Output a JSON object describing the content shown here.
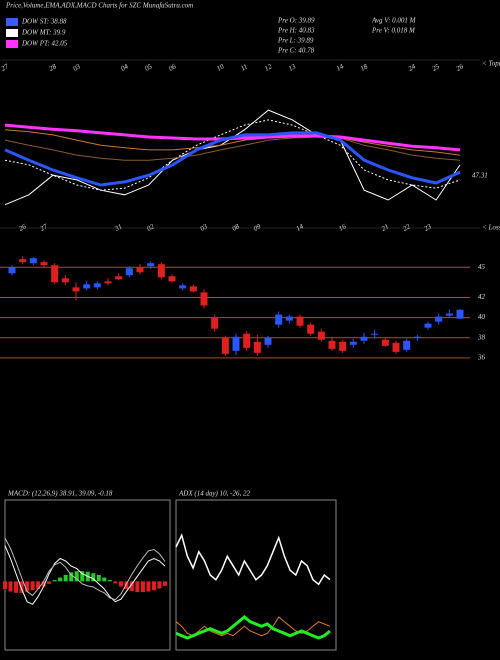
{
  "header": {
    "title": "Price,Volume,EMA,ADX,MACD Charts for SZC MunafaSutra.com",
    "legend": [
      {
        "label": "DOW ST: 38.88",
        "color": "#3a5cff"
      },
      {
        "label": "DOW MT: 39.9",
        "color": "#ffffff"
      },
      {
        "label": "DOW PT: 42.05",
        "color": "#ff33ff"
      }
    ],
    "info": [
      "Pre O: 39.89",
      "Pre H: 40.83",
      "Pre L: 39.89",
      "Pre C: 40.78",
      "Avg V: 0.001 M",
      "Pre V: 0.018 M"
    ]
  },
  "chart_data": [
    {
      "type": "line",
      "annotations": [
        "47.31",
        "< Topa"
      ],
      "categories": [
        "27",
        null,
        "28",
        "03",
        null,
        "04",
        "05",
        "06",
        null,
        "10",
        "11",
        "12",
        "13",
        null,
        "14",
        "18",
        null,
        "24",
        "25",
        "26"
      ],
      "ylim": [
        30,
        60
      ],
      "series": [
        {
          "color": "#ffffff",
          "width": 1,
          "values": [
            32.0,
            33.9,
            37.7,
            36.8,
            34.8,
            33.9,
            35.8,
            40.6,
            42.6,
            43.5,
            46.5,
            50.3,
            48.4,
            45.5,
            44.5,
            34.8,
            32.9,
            35.8,
            32.9,
            39.7
          ]
        },
        {
          "color": "#ffffff",
          "width": 1,
          "dash": true,
          "values": [
            40.6,
            39.7,
            37.7,
            35.8,
            34.8,
            35.2,
            37.2,
            40.6,
            43.5,
            45.5,
            47.4,
            48.4,
            47.4,
            45.5,
            43.5,
            38.7,
            36.8,
            35.8,
            35.2,
            36.8
          ]
        },
        {
          "color": "#c87533",
          "width": 1,
          "values": [
            46.5,
            46.1,
            45.5,
            44.5,
            43.5,
            43.0,
            42.6,
            42.6,
            43.0,
            43.5,
            44.5,
            44.9,
            45.1,
            45.1,
            44.9,
            44.1,
            43.3,
            42.6,
            42.2,
            41.6
          ]
        },
        {
          "color": "#8b5a2b",
          "width": 1,
          "values": [
            44.5,
            43.5,
            42.6,
            41.6,
            41.0,
            40.6,
            40.6,
            41.0,
            41.6,
            42.6,
            43.5,
            44.5,
            44.9,
            45.1,
            44.9,
            43.5,
            42.6,
            41.6,
            41.0,
            40.6
          ]
        },
        {
          "color": "#ff33ff",
          "width": 3,
          "values": [
            47.4,
            47.0,
            46.6,
            46.3,
            45.9,
            45.5,
            45.1,
            44.9,
            44.7,
            44.7,
            44.9,
            45.1,
            45.3,
            45.3,
            45.1,
            44.5,
            43.9,
            43.3,
            43.0,
            42.6
          ]
        },
        {
          "color": "#2a56ff",
          "width": 3,
          "values": [
            42.6,
            40.6,
            38.7,
            37.2,
            35.8,
            36.4,
            37.7,
            39.7,
            42.6,
            44.5,
            45.5,
            45.5,
            45.9,
            45.9,
            44.5,
            40.6,
            38.7,
            37.2,
            36.2,
            38.3
          ]
        }
      ]
    },
    {
      "type": "candlestick",
      "annotations": [
        "< Loss"
      ],
      "categories": [
        null,
        "26",
        null,
        "27",
        null,
        null,
        null,
        null,
        null,
        null,
        "31",
        null,
        null,
        "02",
        null,
        null,
        null,
        null,
        "03",
        null,
        null,
        "08",
        null,
        "09",
        null,
        null,
        null,
        "14",
        null,
        null,
        null,
        "16",
        null,
        null,
        null,
        "21",
        null,
        "22",
        null,
        "23",
        null,
        null,
        null
      ],
      "open": [
        44.4,
        45.8,
        45.4,
        45.5,
        45.2,
        43.9,
        43.0,
        42.9,
        43.0,
        43.6,
        44.1,
        44.2,
        45.0,
        45.1,
        45.3,
        44.1,
        42.9,
        43.1,
        42.5,
        40.0,
        38.0,
        36.7,
        38.4,
        37.6,
        37.3,
        39.3,
        39.7,
        40.1,
        39.3,
        38.6,
        37.7,
        37.6,
        37.3,
        37.7,
        38.3,
        37.8,
        37.5,
        36.8,
        38.0,
        39.0,
        39.6,
        40.2,
        39.89
      ],
      "high": [
        45.2,
        46.1,
        46.0,
        45.7,
        45.4,
        44.2,
        43.5,
        43.6,
        43.6,
        43.9,
        44.4,
        45.1,
        45.3,
        45.6,
        45.5,
        44.3,
        43.4,
        43.3,
        42.8,
        40.3,
        38.2,
        38.4,
        38.7,
        38.3,
        38.2,
        40.6,
        40.3,
        40.3,
        39.5,
        38.9,
        38.1,
        37.8,
        37.9,
        38.5,
        38.8,
        38.0,
        37.7,
        37.9,
        38.3,
        39.6,
        40.4,
        40.8,
        40.83
      ],
      "low": [
        44.2,
        45.3,
        45.2,
        45.0,
        43.3,
        43.2,
        41.7,
        42.7,
        42.8,
        43.2,
        43.7,
        44.0,
        44.3,
        44.8,
        43.8,
        43.5,
        42.7,
        42.5,
        40.9,
        38.6,
        36.2,
        36.3,
        36.7,
        36.2,
        37.0,
        39.0,
        39.4,
        39.0,
        38.2,
        37.6,
        36.7,
        36.5,
        37.0,
        37.4,
        37.9,
        37.1,
        36.4,
        36.6,
        37.7,
        38.8,
        39.3,
        40.0,
        39.89
      ],
      "close": [
        45.0,
        45.5,
        45.9,
        45.2,
        43.5,
        43.5,
        42.6,
        43.3,
        43.4,
        43.4,
        43.8,
        44.9,
        44.5,
        45.4,
        44.0,
        43.6,
        43.2,
        42.6,
        41.2,
        38.9,
        36.4,
        38.1,
        37.0,
        36.5,
        38.0,
        40.3,
        40.1,
        39.2,
        38.4,
        37.8,
        36.9,
        36.7,
        37.6,
        38.1,
        38.4,
        37.2,
        36.6,
        37.7,
        38.1,
        39.4,
        40.1,
        40.4,
        40.78
      ],
      "up_color": "#2a56ff",
      "down_color": "#e02020",
      "line_color": "#a0522d",
      "ylim": [
        34.8,
        47.7
      ],
      "yticks": [
        45,
        42,
        40,
        38,
        36
      ]
    },
    {
      "type": "macd",
      "title": "MACD: (12,26,9) 38.91, 39.09, -0.18",
      "ylim": [
        -2.5,
        3
      ],
      "histogram": [
        -0.3,
        -0.4,
        -0.45,
        -0.45,
        -0.4,
        -0.35,
        -0.3,
        -0.2,
        -0.1,
        0.05,
        0.15,
        0.25,
        0.35,
        0.4,
        0.4,
        0.38,
        0.32,
        0.25,
        0.15,
        0.05,
        -0.08,
        -0.2,
        -0.3,
        -0.38,
        -0.42,
        -0.42,
        -0.4,
        -0.35,
        -0.28,
        -0.18
      ],
      "pos_color": "#22cc22",
      "neg_color": "#e02020",
      "series": [
        {
          "color": "#ffffff",
          "values": [
            1.4,
            0.9,
            0.3,
            -0.3,
            -0.8,
            -0.9,
            -0.6,
            -0.2,
            0.3,
            0.7,
            0.9,
            0.8,
            0.6,
            0.5,
            0.3,
            0.2,
            0.1,
            -0.1,
            -0.3,
            -0.6,
            -0.8,
            -0.7,
            -0.4,
            -0.1,
            0.2,
            0.5,
            0.8,
            0.9,
            0.8,
            0.6
          ]
        },
        {
          "color": "#bbbbbb",
          "values": [
            1.7,
            1.3,
            0.75,
            0.15,
            -0.4,
            -0.55,
            -0.3,
            0.0,
            0.4,
            0.65,
            0.75,
            0.55,
            0.25,
            0.1,
            -0.1,
            -0.18,
            -0.22,
            -0.35,
            -0.45,
            -0.65,
            -0.72,
            -0.5,
            -0.1,
            0.28,
            0.62,
            0.92,
            1.2,
            1.25,
            1.08,
            0.78
          ]
        }
      ]
    },
    {
      "type": "adx",
      "title": "ADX (14 day) 10, -26, 22",
      "ylim": [
        0,
        60
      ],
      "series": [
        {
          "color": "#ffffff",
          "width": 1.5,
          "values": [
            42,
            47,
            38,
            33,
            40,
            36,
            30,
            28,
            32,
            38,
            34,
            30,
            36,
            32,
            28,
            30,
            34,
            40,
            46,
            38,
            32,
            30,
            36,
            34,
            28,
            26,
            30,
            28
          ]
        },
        {
          "color": "#e07b20",
          "width": 1,
          "values": [
            10,
            8,
            5,
            4,
            6,
            8,
            6,
            5,
            4,
            5,
            4,
            6,
            8,
            6,
            5,
            4,
            5,
            8,
            12,
            10,
            8,
            6,
            5,
            6,
            8,
            10,
            9,
            8
          ]
        },
        {
          "color": "#22ee22",
          "width": 3,
          "values": [
            5,
            4,
            3,
            4,
            5,
            6,
            7,
            6,
            5,
            6,
            8,
            10,
            12,
            10,
            9,
            8,
            9,
            7,
            6,
            5,
            4,
            5,
            6,
            5,
            4,
            3,
            4,
            6
          ]
        }
      ]
    }
  ]
}
